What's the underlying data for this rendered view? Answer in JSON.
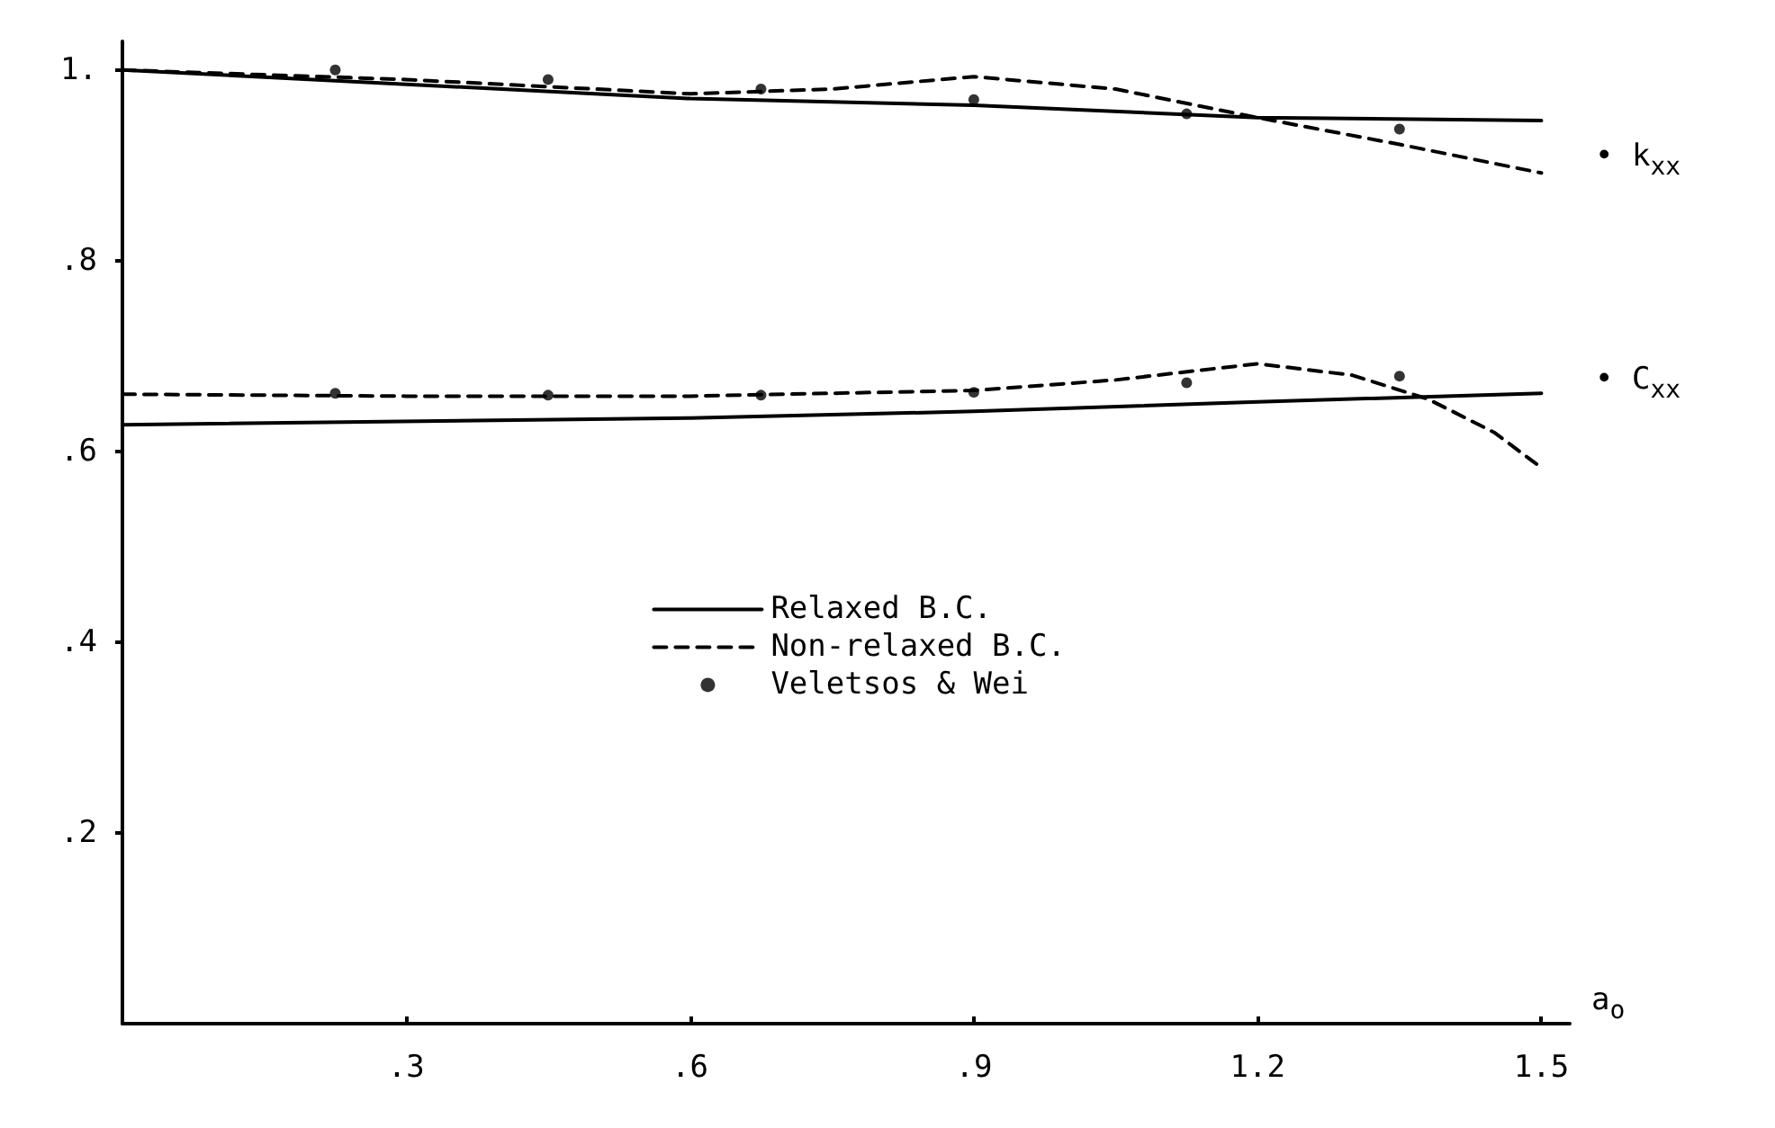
{
  "chart_data": {
    "type": "line",
    "xlabel": "a$_{o}$",
    "xlim": [
      0,
      1.53
    ],
    "ylim": [
      0,
      1.03
    ],
    "xticks": [
      {
        "value": 0.3,
        "label": ".3"
      },
      {
        "value": 0.6,
        "label": ".6"
      },
      {
        "value": 0.9,
        "label": ".9"
      },
      {
        "value": 1.2,
        "label": "1.2"
      },
      {
        "value": 1.5,
        "label": "1.5"
      }
    ],
    "yticks": [
      {
        "value": 0.2,
        "label": ".2"
      },
      {
        "value": 0.4,
        "label": ".4"
      },
      {
        "value": 0.6,
        "label": ".6"
      },
      {
        "value": 0.8,
        "label": ".8"
      },
      {
        "value": 1.0,
        "label": "1."
      }
    ],
    "grid": false,
    "legend": "center",
    "series": [
      {
        "name": "Relaxed B.C.",
        "type": "line",
        "color": "#000000",
        "line_style": "solid",
        "marker": "none",
        "x": [
          0,
          0.3,
          0.6,
          0.9,
          1.2,
          1.5
        ],
        "values": [
          1.0,
          0.985,
          0.97,
          0.963,
          0.95,
          0.947
        ]
      },
      {
        "name": "Non-relaxed B.C.",
        "type": "line",
        "color": "#000000",
        "line_style": "dashed",
        "marker": "none",
        "x": [
          0,
          0.3,
          0.6,
          0.75,
          0.9,
          1.05,
          1.2,
          1.35,
          1.5
        ],
        "values": [
          1.0,
          0.99,
          0.975,
          0.98,
          0.993,
          0.98,
          0.95,
          0.922,
          0.892
        ]
      },
      {
        "name": "Veletsos & Wei",
        "type": "scatter",
        "color": "#000000",
        "marker": "circle",
        "x": [
          0.225,
          0.45,
          0.675,
          0.9,
          1.125,
          1.35
        ],
        "values": [
          1.0,
          0.99,
          0.98,
          0.969,
          0.954,
          0.938
        ]
      },
      {
        "type": "line",
        "color": "#000000",
        "line_style": "solid",
        "marker": "none",
        "x": [
          0,
          0.6,
          0.9,
          1.2,
          1.5
        ],
        "values": [
          0.628,
          0.635,
          0.642,
          0.652,
          0.661
        ]
      },
      {
        "type": "line",
        "color": "#000000",
        "line_style": "dashed",
        "marker": "none",
        "x": [
          0,
          0.3,
          0.6,
          0.9,
          1.05,
          1.2,
          1.3,
          1.38,
          1.45,
          1.5
        ],
        "values": [
          0.66,
          0.658,
          0.658,
          0.664,
          0.675,
          0.692,
          0.68,
          0.655,
          0.62,
          0.583
        ]
      },
      {
        "type": "scatter",
        "color": "#000000",
        "marker": "circle",
        "x": [
          0.225,
          0.45,
          0.675,
          0.9,
          1.125,
          1.35
        ],
        "values": [
          0.661,
          0.659,
          0.659,
          0.662,
          0.672,
          0.679
        ]
      }
    ],
    "annotations": [
      "• k$_{xx}$",
      "• C$_{xx}$"
    ]
  }
}
